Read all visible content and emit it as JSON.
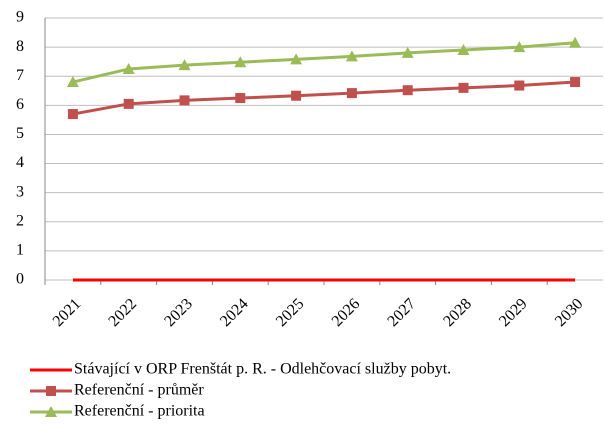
{
  "chart_data": {
    "type": "line",
    "x": [
      "2021",
      "2022",
      "2023",
      "2024",
      "2025",
      "2026",
      "2027",
      "2028",
      "2029",
      "2030"
    ],
    "series": [
      {
        "name": "Stávající v ORP Frenštát p. R. - Odlehčovací služby pobyt.",
        "color": "#ff0000",
        "marker": "none",
        "values": [
          0,
          0,
          0,
          0,
          0,
          0,
          0,
          0,
          0,
          0
        ]
      },
      {
        "name": "Referenční - průměr",
        "color": "#c0504d",
        "marker": "square",
        "values": [
          5.7,
          6.05,
          6.17,
          6.25,
          6.33,
          6.42,
          6.52,
          6.6,
          6.68,
          6.8
        ]
      },
      {
        "name": "Referenční - priorita",
        "color": "#9bbb59",
        "marker": "triangle",
        "values": [
          6.8,
          7.25,
          7.38,
          7.48,
          7.58,
          7.68,
          7.8,
          7.9,
          8.0,
          8.15
        ]
      }
    ],
    "ylim": [
      0,
      9
    ],
    "yticks": [
      0,
      1,
      2,
      3,
      4,
      5,
      6,
      7,
      8,
      9
    ],
    "grid": true,
    "legend": "bottom"
  }
}
